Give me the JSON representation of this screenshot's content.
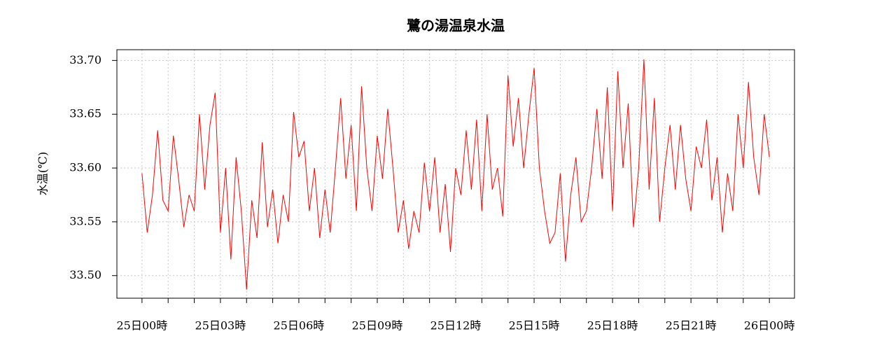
{
  "chart_data": {
    "type": "line",
    "title": "鷺の湯温泉水温",
    "ylabel": "水温(℃)",
    "color": "#ff0000",
    "grid": true,
    "xlim": [
      -0.96,
      24.96
    ],
    "ylim": [
      33.479,
      33.71
    ],
    "xticks": [
      {
        "value": 0,
        "label": "25日00時"
      },
      {
        "value": 3,
        "label": "25日03時"
      },
      {
        "value": 6,
        "label": "25日06時"
      },
      {
        "value": 9,
        "label": "25日09時"
      },
      {
        "value": 12,
        "label": "25日12時"
      },
      {
        "value": 15,
        "label": "25日15時"
      },
      {
        "value": 18,
        "label": "25日18時"
      },
      {
        "value": 21,
        "label": "25日21時"
      },
      {
        "value": 24,
        "label": "26日00時"
      }
    ],
    "xminor_ticks": [
      1,
      2,
      4,
      5,
      7,
      8,
      10,
      11,
      13,
      14,
      16,
      17,
      19,
      20,
      22,
      23
    ],
    "yticks": [
      {
        "value": 33.5,
        "label": "33.50"
      },
      33.55,
      {
        "value": 33.6,
        "label": "33.60"
      },
      33.65,
      {
        "value": 33.7,
        "label": "33.70"
      }
    ],
    "x": [
      0,
      0.2,
      0.4,
      0.6,
      0.8,
      1,
      1.2,
      1.4,
      1.6,
      1.8,
      2,
      2.2,
      2.4,
      2.6,
      2.8,
      3,
      3.2,
      3.4,
      3.6,
      3.8,
      4,
      4.2,
      4.4,
      4.6,
      4.8,
      5,
      5.2,
      5.4,
      5.6,
      5.8,
      6,
      6.2,
      6.4,
      6.6,
      6.8,
      7,
      7.2,
      7.4,
      7.6,
      7.8,
      8,
      8.2,
      8.4,
      8.6,
      8.8,
      9,
      9.2,
      9.4,
      9.6,
      9.8,
      10,
      10.2,
      10.4,
      10.6,
      10.8,
      11,
      11.2,
      11.4,
      11.6,
      11.8,
      12,
      12.2,
      12.4,
      12.6,
      12.8,
      13,
      13.2,
      13.4,
      13.6,
      13.8,
      14,
      14.2,
      14.4,
      14.6,
      14.8,
      15,
      15.2,
      15.4,
      15.6,
      15.8,
      16,
      16.2,
      16.4,
      16.6,
      16.8,
      17,
      17.2,
      17.4,
      17.6,
      17.8,
      18,
      18.2,
      18.4,
      18.6,
      18.8,
      19,
      19.2,
      19.4,
      19.6,
      19.8,
      20,
      20.2,
      20.4,
      20.6,
      20.8,
      21,
      21.2,
      21.4,
      21.6,
      21.8,
      22,
      22.2,
      22.4,
      22.6,
      22.8,
      23,
      23.2,
      23.4,
      23.6,
      23.8,
      24
    ],
    "values": [
      33.595,
      33.54,
      33.575,
      33.635,
      33.57,
      33.56,
      33.63,
      33.59,
      33.545,
      33.575,
      33.56,
      33.65,
      33.58,
      33.64,
      33.67,
      33.54,
      33.6,
      33.515,
      33.61,
      33.56,
      33.487,
      33.57,
      33.535,
      33.624,
      33.545,
      33.58,
      33.53,
      33.575,
      33.55,
      33.652,
      33.61,
      33.625,
      33.56,
      33.6,
      33.535,
      33.58,
      33.54,
      33.6,
      33.665,
      33.59,
      33.64,
      33.56,
      33.676,
      33.6,
      33.56,
      33.63,
      33.59,
      33.655,
      33.6,
      33.54,
      33.57,
      33.525,
      33.56,
      33.54,
      33.605,
      33.56,
      33.61,
      33.54,
      33.585,
      33.522,
      33.6,
      33.575,
      33.635,
      33.58,
      33.645,
      33.56,
      33.65,
      33.58,
      33.6,
      33.555,
      33.686,
      33.62,
      33.665,
      33.6,
      33.65,
      33.693,
      33.6,
      33.56,
      33.53,
      33.54,
      33.595,
      33.513,
      33.575,
      33.61,
      33.55,
      33.56,
      33.6,
      33.655,
      33.59,
      33.675,
      33.56,
      33.69,
      33.6,
      33.66,
      33.545,
      33.6,
      33.701,
      33.58,
      33.665,
      33.55,
      33.6,
      33.64,
      33.58,
      33.64,
      33.59,
      33.56,
      33.62,
      33.6,
      33.645,
      33.57,
      33.61,
      33.54,
      33.595,
      33.56,
      33.65,
      33.6,
      33.68,
      33.61,
      33.575,
      33.65,
      33.61
    ]
  }
}
